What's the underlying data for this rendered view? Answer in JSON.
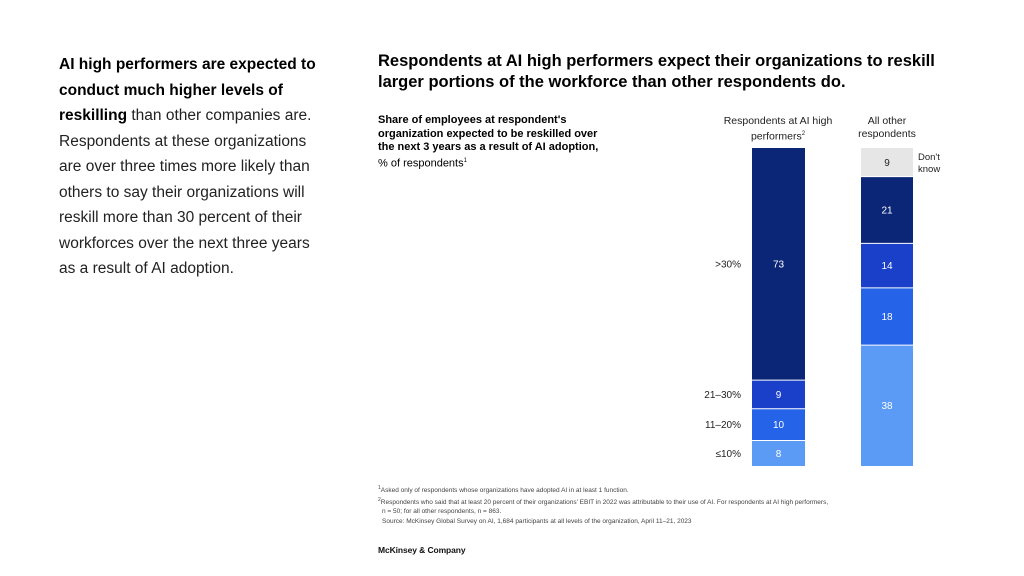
{
  "intro": {
    "bold_lead": "AI high performers are expected to conduct much higher levels of reskilling",
    "text": " than other companies are. Respondents at these organizations are over three times more likely than others to say their organizations will reskill more than 30 percent of their workforces over the next three years as a result of AI adoption."
  },
  "subtitle": {
    "bold": "Share of employees at respondent's organization expected to be reskilled over the next 3 years as a result of AI adoption,",
    "normal": "% of respondents",
    "note_mark": "1"
  },
  "headers": {
    "hp": "Respondents at AI high performers",
    "hp_mark": "2",
    "other": "All other respondents"
  },
  "chart_data": {
    "type": "bar",
    "stacked": true,
    "title": "Respondents at AI high performers expect their organizations to reskill larger portions of the workforce than other respondents do.",
    "unit": "% of respondents",
    "categories": [
      "Respondents at AI high performers",
      "All other respondents"
    ],
    "series": [
      {
        "name": "≤10%",
        "color": "#5b9af5",
        "values": [
          8,
          38
        ]
      },
      {
        "name": "11–20%",
        "color": "#2563e8",
        "values": [
          10,
          18
        ]
      },
      {
        "name": "21–30%",
        "color": "#1a3fc8",
        "values": [
          9,
          14
        ]
      },
      {
        "name": ">30%",
        "color": "#0c2677",
        "values": [
          73,
          21
        ]
      },
      {
        "name": "Don't know",
        "color": "#e6e6e6",
        "values": [
          0,
          9
        ]
      }
    ],
    "segment_label_hp": [
      ">30%",
      "21–30%",
      "11–20%",
      "≤10%"
    ],
    "dont_know_label": [
      "Don't",
      "know"
    ]
  },
  "footnotes": {
    "note1_mark": "1",
    "note1": "Asked only of respondents whose organizations have adopted AI in at least 1 function.",
    "note2_mark": "2",
    "note2a": "Respondents who said that at least 20 percent of their organizations' EBIT in 2022 was attributable to their use of AI. For respondents at AI high performers,",
    "note2b": "n = 50; for all other respondents, n = 863.",
    "source": "Source: McKinsey Global Survey on AI, 1,684 participants at all levels of the organization, April 11–21, 2023"
  },
  "brand": "McKinsey & Company"
}
